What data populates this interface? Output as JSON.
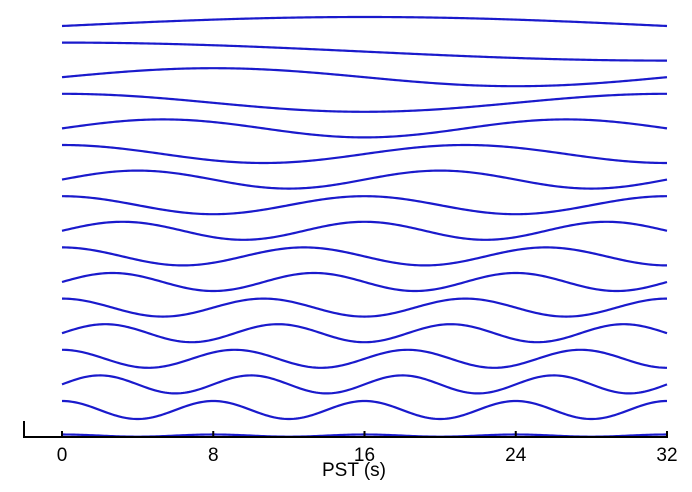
{
  "chart_data": {
    "type": "line",
    "title": "",
    "xlabel": "PST (s)",
    "ylabel": "",
    "xlim": [
      0,
      32
    ],
    "x_ticks": [
      0,
      8,
      16,
      24,
      32
    ],
    "x_tick_labels": [
      "0",
      "8",
      "16",
      "24",
      "32"
    ],
    "grid": false,
    "legend": "none",
    "series_color": "#1a1acc",
    "series": [
      {
        "cycles_over_window": 0.5,
        "phase": "sine",
        "amplitude": 1.0
      },
      {
        "cycles_over_window": 0.5,
        "phase": "cosine",
        "amplitude": 1.0
      },
      {
        "cycles_over_window": 1.0,
        "phase": "sine",
        "amplitude": 1.0
      },
      {
        "cycles_over_window": 1.0,
        "phase": "cosine",
        "amplitude": 1.0
      },
      {
        "cycles_over_window": 1.5,
        "phase": "sine",
        "amplitude": 1.0
      },
      {
        "cycles_over_window": 1.5,
        "phase": "cosine",
        "amplitude": 1.0
      },
      {
        "cycles_over_window": 2.0,
        "phase": "sine",
        "amplitude": 1.0
      },
      {
        "cycles_over_window": 2.0,
        "phase": "cosine",
        "amplitude": 1.0
      },
      {
        "cycles_over_window": 2.5,
        "phase": "sine",
        "amplitude": 1.0
      },
      {
        "cycles_over_window": 2.5,
        "phase": "cosine",
        "amplitude": 1.0
      },
      {
        "cycles_over_window": 3.0,
        "phase": "sine",
        "amplitude": 1.0
      },
      {
        "cycles_over_window": 3.0,
        "phase": "cosine",
        "amplitude": 1.0
      },
      {
        "cycles_over_window": 3.5,
        "phase": "sine",
        "amplitude": 1.0
      },
      {
        "cycles_over_window": 3.5,
        "phase": "cosine",
        "amplitude": 1.0
      },
      {
        "cycles_over_window": 4.0,
        "phase": "sine",
        "amplitude": 1.0
      },
      {
        "cycles_over_window": 4.0,
        "phase": "cosine",
        "amplitude": 1.0
      },
      {
        "cycles_over_window": 4.0,
        "phase": "cosine",
        "amplitude": 0.12
      }
    ]
  }
}
